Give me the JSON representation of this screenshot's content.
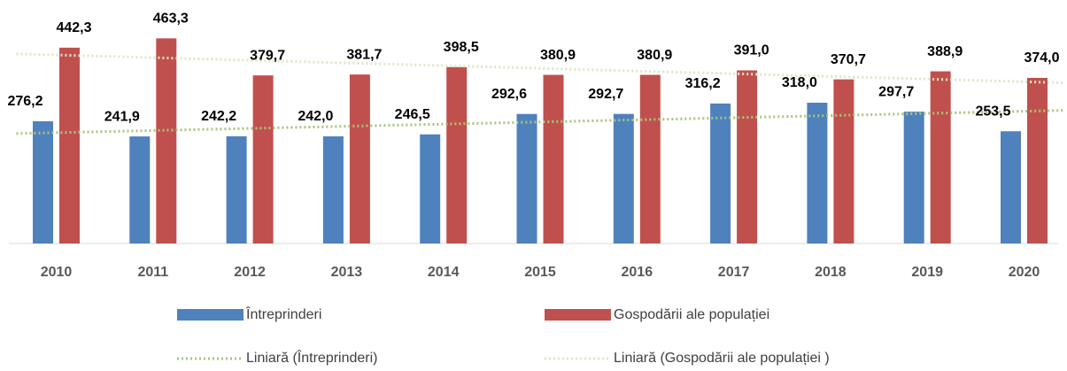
{
  "chart_data": {
    "type": "bar",
    "categories": [
      "2010",
      "2011",
      "2012",
      "2013",
      "2014",
      "2015",
      "2016",
      "2017",
      "2018",
      "2019",
      "2020"
    ],
    "series": [
      {
        "name": "Întreprinderi",
        "color": "#4f81bd",
        "values": [
          276.2,
          241.9,
          242.2,
          242.0,
          246.5,
          292.6,
          292.7,
          316.2,
          318.0,
          297.7,
          253.5
        ],
        "value_labels": [
          "276,2",
          "241,9",
          "242,2",
          "242,0",
          "246,5",
          "292,6",
          "292,7",
          "316,2",
          "318,0",
          "297,7",
          "253,5"
        ],
        "trendline": {
          "name": "Liniară (Întreprinderi)",
          "color": "#a8c47c"
        }
      },
      {
        "name": "Gospodării ale populației",
        "color": "#c0504d",
        "values": [
          442.3,
          463.3,
          379.7,
          381.7,
          398.5,
          380.9,
          380.9,
          391.0,
          370.7,
          388.9,
          374.0
        ],
        "value_labels": [
          "442,3",
          "463,3",
          "379,7",
          "381,7",
          "398,5",
          "380,9",
          "380,9",
          "391,0",
          "370,7",
          "388,9",
          "374,0"
        ],
        "trendline": {
          "name": "Liniară (Gospodării ale populației )",
          "color": "#dde6c6"
        }
      }
    ],
    "ylim": [
      0,
      500
    ]
  }
}
